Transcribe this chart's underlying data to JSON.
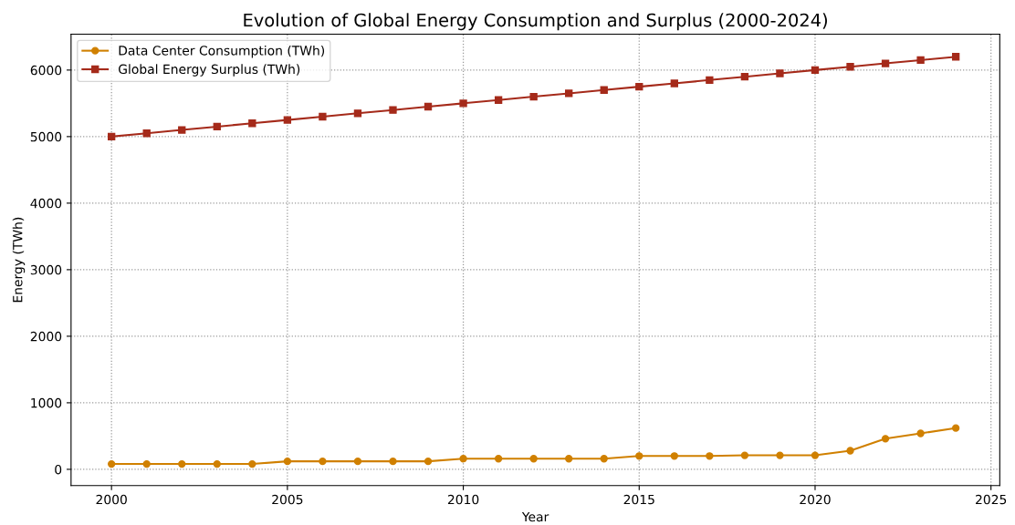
{
  "chart_data": {
    "type": "line",
    "title": "Evolution of Global Energy Consumption and Surplus (2000-2024)",
    "xlabel": "Year",
    "ylabel": "Energy (TWh)",
    "x": [
      2000,
      2001,
      2002,
      2003,
      2004,
      2005,
      2006,
      2007,
      2008,
      2009,
      2010,
      2011,
      2012,
      2013,
      2014,
      2015,
      2016,
      2017,
      2018,
      2019,
      2020,
      2021,
      2022,
      2023,
      2024
    ],
    "series": [
      {
        "name": "Data Center Consumption (TWh)",
        "color": "#d08000",
        "marker": "circle",
        "values": [
          80,
          80,
          80,
          80,
          80,
          120,
          120,
          120,
          120,
          120,
          160,
          160,
          160,
          160,
          160,
          200,
          200,
          200,
          210,
          210,
          210,
          280,
          460,
          540,
          620
        ]
      },
      {
        "name": "Global Energy Surplus (TWh)",
        "color": "#a52a1a",
        "marker": "square",
        "values": [
          5000,
          5050,
          5100,
          5150,
          5200,
          5250,
          5300,
          5350,
          5400,
          5450,
          5500,
          5550,
          5600,
          5650,
          5700,
          5750,
          5800,
          5850,
          5900,
          5950,
          6000,
          6050,
          6100,
          6150,
          6200
        ]
      }
    ],
    "xlim": [
      1998.85,
      2025.25
    ],
    "ylim": [
      -245,
      6540
    ],
    "xticks": [
      2000,
      2005,
      2010,
      2015,
      2020,
      2025
    ],
    "yticks": [
      0,
      1000,
      2000,
      3000,
      4000,
      5000,
      6000
    ],
    "grid": true,
    "legend": "top left",
    "line_style": "solid"
  }
}
